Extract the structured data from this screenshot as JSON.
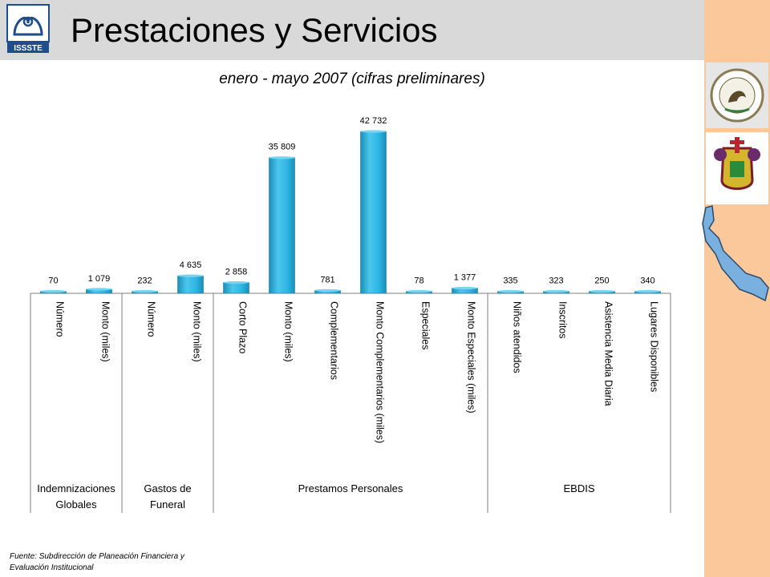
{
  "header": {
    "title": "Prestaciones y Servicios",
    "logo_text": "ISSSTE"
  },
  "chart_data": {
    "type": "bar",
    "subtitle": "enero - mayo 2007 (cifras preliminares)",
    "categories": [
      "Número",
      "Monto (miles)",
      "Número",
      "Monto (miles)",
      "Corto Plazo",
      "Monto (miles)",
      "Complementarios",
      "Monto Complementarios (miles)",
      "Especiales",
      "Monto Especiales (miles)",
      "Niños atendidos",
      "Inscritos",
      "Asistencia Media Diaria",
      "Lugares Disponibles"
    ],
    "values": [
      70,
      1079,
      232,
      4635,
      2858,
      35809,
      781,
      42732,
      78,
      1377,
      335,
      323,
      250,
      340
    ],
    "value_labels": [
      "70",
      "1 079",
      "232",
      "4 635",
      "2 858",
      "35 809",
      "781",
      "42 732",
      "78",
      "1 377",
      "335",
      "323",
      "250",
      "340"
    ],
    "groups": [
      {
        "name": "Indemnizaciones Globales",
        "lines": [
          "Indemnizaciones",
          "Globales"
        ],
        "start": 0,
        "end": 1
      },
      {
        "name": "Gastos de Funeral",
        "lines": [
          "Gastos de",
          "Funeral"
        ],
        "start": 2,
        "end": 3
      },
      {
        "name": "Prestamos Personales",
        "lines": [
          "Prestamos Personales"
        ],
        "start": 4,
        "end": 9
      },
      {
        "name": "EBDIS",
        "lines": [
          "EBDIS"
        ],
        "start": 10,
        "end": 13
      }
    ],
    "ylim": [
      0,
      42732
    ],
    "grid": false,
    "legend": "none",
    "colors": {
      "bar": "#2fb6e3",
      "bar_dark": "#1a8fb8",
      "bar_light": "#7ad4f1",
      "axis": "#7f7f7f"
    }
  },
  "footer": {
    "source_line1": "Fuente: Subdirección de Planeación Financiera y",
    "source_line2": "Evaluación Institucional"
  },
  "icons": {
    "logo": "issste-logo-icon",
    "seal1": "mexican-coat-of-arms-icon",
    "seal2": "veracruz-coat-of-arms-icon",
    "map": "veracruz-map-icon"
  }
}
